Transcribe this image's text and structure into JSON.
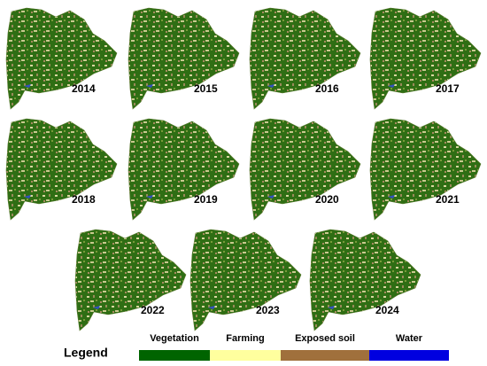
{
  "maps": [
    {
      "year": "2014"
    },
    {
      "year": "2015"
    },
    {
      "year": "2016"
    },
    {
      "year": "2017"
    },
    {
      "year": "2018"
    },
    {
      "year": "2019"
    },
    {
      "year": "2020"
    },
    {
      "year": "2021"
    },
    {
      "year": "2022"
    },
    {
      "year": "2023"
    },
    {
      "year": "2024"
    }
  ],
  "legend": {
    "title": "Legend",
    "items": [
      {
        "label": "Vegetation",
        "color": "#006400"
      },
      {
        "label": "Farming",
        "color": "#ffff9e"
      },
      {
        "label": "Exposed soil",
        "color": "#a0703c"
      },
      {
        "label": "Water",
        "color": "#0000e0"
      }
    ]
  }
}
